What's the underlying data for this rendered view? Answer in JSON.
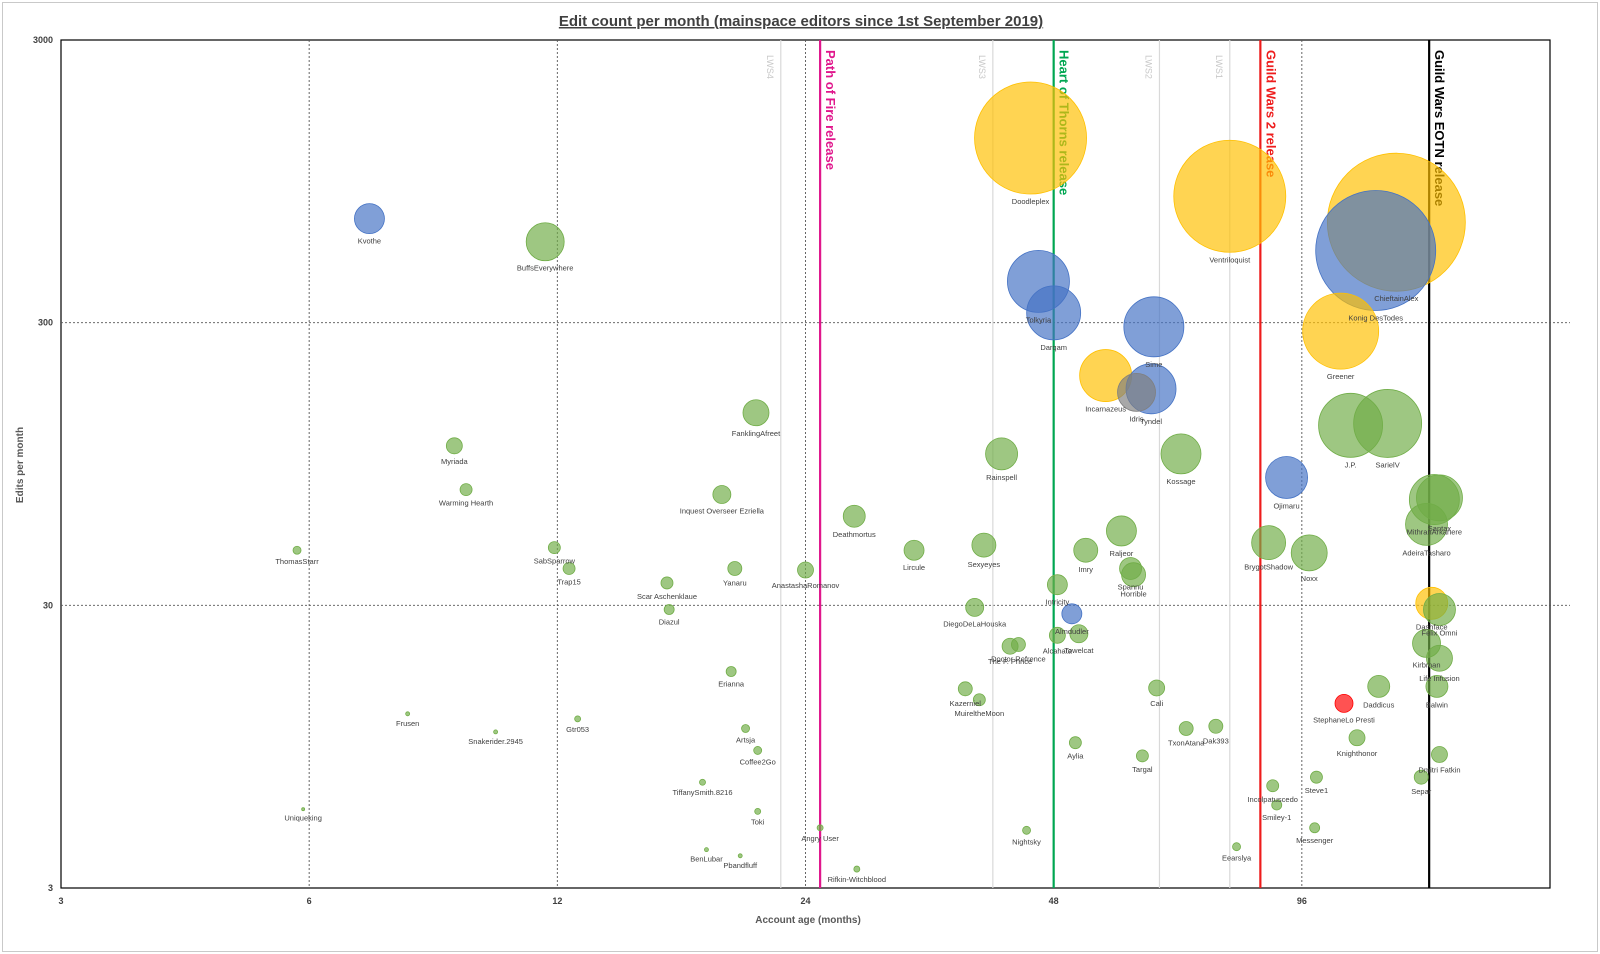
{
  "chart_data": {
    "type": "scatter",
    "title": "Edit count per month (mainspace editors  since 1st September 2019)",
    "xlabel": "Account age (months)",
    "ylabel": "Edits per month",
    "x_scale": "log",
    "y_scale": "log",
    "xlim": [
      3,
      192
    ],
    "ylim": [
      3,
      3000
    ],
    "x_ticks": [
      "3",
      "6",
      "12",
      "24",
      "48",
      "96"
    ],
    "y_ticks": [
      "3",
      "30",
      "300",
      "3000"
    ],
    "grid": true,
    "release_lines": [
      {
        "label": "Path of Fire release",
        "x": 25,
        "color": "#e0168c"
      },
      {
        "label": "Heart of Thorns release",
        "x": 48,
        "color": "#00a651"
      },
      {
        "label": "Guild Wars 2 release",
        "x": 85.5,
        "color": "#ee1c1c"
      },
      {
        "label": "Guild Wars EOTN release",
        "x": 137,
        "color": "#000000"
      }
    ],
    "lws_lines": [
      {
        "label": "LWS4",
        "x": 22.4
      },
      {
        "label": "LWS3",
        "x": 40.5
      },
      {
        "label": "LWS2",
        "x": 64.5
      },
      {
        "label": "LWS1",
        "x": 78.5
      }
    ],
    "colors": {
      "green": "#70ad47",
      "blue": "#4472c4",
      "orange": "#ffc000",
      "red": "#ff0000",
      "grey": "#7f7f7f"
    },
    "points": [
      {
        "name": "Kvothe",
        "x": 7.1,
        "y": 700,
        "r": 15,
        "c": "blue"
      },
      {
        "name": "BuffsEverywhere",
        "x": 11.6,
        "y": 580,
        "r": 19,
        "c": "green"
      },
      {
        "name": "Doodleplex",
        "x": 45,
        "y": 1350,
        "r": 56,
        "c": "orange"
      },
      {
        "name": "Tolkyria",
        "x": 46,
        "y": 420,
        "r": 31,
        "c": "blue"
      },
      {
        "name": "Darqam",
        "x": 48,
        "y": 325,
        "r": 27,
        "c": "blue"
      },
      {
        "name": "Incarnazeus",
        "x": 55.5,
        "y": 195,
        "r": 26,
        "c": "orange"
      },
      {
        "name": "Sime",
        "x": 63.5,
        "y": 290,
        "r": 30,
        "c": "blue"
      },
      {
        "name": "Idris",
        "x": 60.5,
        "y": 170,
        "r": 19,
        "c": "grey"
      },
      {
        "name": "Tyndel",
        "x": 63,
        "y": 175,
        "r": 25,
        "c": "blue"
      },
      {
        "name": "Ventriloquist",
        "x": 78.5,
        "y": 840,
        "r": 56,
        "c": "orange"
      },
      {
        "name": "ChieftainAlex",
        "x": 125,
        "y": 680,
        "r": 69,
        "c": "orange"
      },
      {
        "name": "Konig DesTodes",
        "x": 118,
        "y": 540,
        "r": 60,
        "c": "blue"
      },
      {
        "name": "Greener",
        "x": 107,
        "y": 280,
        "r": 38,
        "c": "orange"
      },
      {
        "name": "J.P.",
        "x": 110,
        "y": 130,
        "r": 32,
        "c": "green"
      },
      {
        "name": "SarielV",
        "x": 122,
        "y": 132,
        "r": 34,
        "c": "green"
      },
      {
        "name": "Santax",
        "x": 141,
        "y": 72,
        "r": 23,
        "c": "green"
      },
      {
        "name": "MithranArkanere",
        "x": 139,
        "y": 71,
        "r": 25,
        "c": "green"
      },
      {
        "name": "AdeiraTasharo",
        "x": 136,
        "y": 58,
        "r": 21,
        "c": "green"
      },
      {
        "name": "Dashface",
        "x": 138,
        "y": 30.5,
        "r": 16,
        "c": "orange"
      },
      {
        "name": "Felix Omni",
        "x": 141,
        "y": 29,
        "r": 16,
        "c": "green"
      },
      {
        "name": "Kirbman",
        "x": 136,
        "y": 22,
        "r": 14,
        "c": "green"
      },
      {
        "name": "Life Infusion",
        "x": 141,
        "y": 19.5,
        "r": 13,
        "c": "green"
      },
      {
        "name": "Balwin",
        "x": 140,
        "y": 15.5,
        "r": 11,
        "c": "green"
      },
      {
        "name": "Daddicus",
        "x": 119,
        "y": 15.5,
        "r": 11,
        "c": "green"
      },
      {
        "name": "StephaneLo Presti",
        "x": 108,
        "y": 13.5,
        "r": 9,
        "c": "red"
      },
      {
        "name": "Knighthonor",
        "x": 112,
        "y": 10.2,
        "r": 8,
        "c": "green"
      },
      {
        "name": "Dmitri Fatkin",
        "x": 141,
        "y": 8.9,
        "r": 8,
        "c": "green"
      },
      {
        "name": "Separ",
        "x": 134,
        "y": 7.4,
        "r": 7,
        "c": "green"
      },
      {
        "name": "Steve1",
        "x": 100,
        "y": 7.4,
        "r": 6,
        "c": "green"
      },
      {
        "name": "Messenger",
        "x": 99.5,
        "y": 4.9,
        "r": 5,
        "c": "green"
      },
      {
        "name": "Ojimaru",
        "x": 92,
        "y": 85,
        "r": 21,
        "c": "blue"
      },
      {
        "name": "Noxx",
        "x": 98,
        "y": 46,
        "r": 18,
        "c": "green"
      },
      {
        "name": "BrygotShadow",
        "x": 87.5,
        "y": 50,
        "r": 17,
        "c": "green"
      },
      {
        "name": "Incolpatuscedo",
        "x": 88.5,
        "y": 6.9,
        "r": 6,
        "c": "green"
      },
      {
        "name": "Smiley-1",
        "x": 89.5,
        "y": 5.9,
        "r": 5,
        "c": "green"
      },
      {
        "name": "Eearslya",
        "x": 80,
        "y": 4.2,
        "r": 4,
        "c": "green"
      },
      {
        "name": "Kossage",
        "x": 68.5,
        "y": 103,
        "r": 20,
        "c": "green"
      },
      {
        "name": "Raljeor",
        "x": 58,
        "y": 55,
        "r": 15,
        "c": "green"
      },
      {
        "name": "Spannu",
        "x": 59.5,
        "y": 40.5,
        "r": 11,
        "c": "green"
      },
      {
        "name": "Horrible",
        "x": 60,
        "y": 38.5,
        "r": 12,
        "c": "green"
      },
      {
        "name": "Cali",
        "x": 64,
        "y": 15.3,
        "r": 8,
        "c": "green"
      },
      {
        "name": "TxonAtana",
        "x": 69.5,
        "y": 11,
        "r": 7,
        "c": "green"
      },
      {
        "name": "Dak393",
        "x": 75.5,
        "y": 11.2,
        "r": 7,
        "c": "green"
      },
      {
        "name": "Targal",
        "x": 61.5,
        "y": 8.8,
        "r": 6,
        "c": "green"
      },
      {
        "name": "Aylia",
        "x": 51,
        "y": 9.8,
        "r": 6,
        "c": "green"
      },
      {
        "name": "Imry",
        "x": 52.5,
        "y": 47,
        "r": 12,
        "c": "green"
      },
      {
        "name": "Almdudler",
        "x": 50.5,
        "y": 28,
        "r": 10,
        "c": "blue"
      },
      {
        "name": "Intricity",
        "x": 48.5,
        "y": 35.5,
        "r": 10,
        "c": "green"
      },
      {
        "name": "Towelcat",
        "x": 51.5,
        "y": 23.8,
        "r": 9,
        "c": "green"
      },
      {
        "name": "Alcahata",
        "x": 48.5,
        "y": 23.5,
        "r": 8,
        "c": "green"
      },
      {
        "name": "Rainspell",
        "x": 41.5,
        "y": 103,
        "r": 16,
        "c": "green"
      },
      {
        "name": "Sexyeyes",
        "x": 39.5,
        "y": 49,
        "r": 12,
        "c": "green"
      },
      {
        "name": "Lircule",
        "x": 32.5,
        "y": 47,
        "r": 10,
        "c": "green"
      },
      {
        "name": "DiegoDeLaHouska",
        "x": 38.5,
        "y": 29.5,
        "r": 9,
        "c": "green"
      },
      {
        "name": "The F. Prince",
        "x": 42.5,
        "y": 21.5,
        "r": 8,
        "c": "green"
      },
      {
        "name": "Doctor Refrence",
        "x": 43.5,
        "y": 21.8,
        "r": 7,
        "c": "green"
      },
      {
        "name": "Kazerniel",
        "x": 37.5,
        "y": 15.2,
        "r": 7,
        "c": "green"
      },
      {
        "name": "MuireltheMoon",
        "x": 39,
        "y": 13.9,
        "r": 6,
        "c": "green"
      },
      {
        "name": "Nightsky",
        "x": 44.5,
        "y": 4.8,
        "r": 4,
        "c": "green"
      },
      {
        "name": "Deathmortus",
        "x": 27.5,
        "y": 62,
        "r": 11,
        "c": "green"
      },
      {
        "name": "AnastashaRomanov",
        "x": 24,
        "y": 40,
        "r": 8,
        "c": "green"
      },
      {
        "name": "Angry User",
        "x": 25,
        "y": 4.9,
        "r": 3,
        "c": "green"
      },
      {
        "name": "Rifkin-Witchblood",
        "x": 27.7,
        "y": 3.5,
        "r": 3,
        "c": "green"
      },
      {
        "name": "FanklingAfreet",
        "x": 20.9,
        "y": 144,
        "r": 13,
        "c": "green"
      },
      {
        "name": "Inquest Overseer Ezriella",
        "x": 19,
        "y": 74,
        "r": 9,
        "c": "green"
      },
      {
        "name": "Yanaru",
        "x": 19.7,
        "y": 40.5,
        "r": 7,
        "c": "green"
      },
      {
        "name": "Scar Aschenklaue",
        "x": 16.3,
        "y": 36,
        "r": 6,
        "c": "green"
      },
      {
        "name": "Diazul",
        "x": 16.4,
        "y": 29,
        "r": 5,
        "c": "green"
      },
      {
        "name": "Erianna",
        "x": 19.5,
        "y": 17.5,
        "r": 5,
        "c": "green"
      },
      {
        "name": "Artsja",
        "x": 20.3,
        "y": 11,
        "r": 4,
        "c": "green"
      },
      {
        "name": "Coffee2Go",
        "x": 21,
        "y": 9.2,
        "r": 4,
        "c": "green"
      },
      {
        "name": "TiffanySmith.8216",
        "x": 18,
        "y": 7.1,
        "r": 3,
        "c": "green"
      },
      {
        "name": "Toki",
        "x": 21,
        "y": 5.6,
        "r": 3,
        "c": "green"
      },
      {
        "name": "BenLubar",
        "x": 18.2,
        "y": 4.1,
        "r": 2,
        "c": "green"
      },
      {
        "name": "Pbandfluff",
        "x": 20,
        "y": 3.9,
        "r": 2,
        "c": "green"
      },
      {
        "name": "SabSparrow",
        "x": 11.9,
        "y": 48,
        "r": 6,
        "c": "green"
      },
      {
        "name": "Trap15",
        "x": 12.4,
        "y": 40.5,
        "r": 6,
        "c": "green"
      },
      {
        "name": "Gtr053",
        "x": 12.7,
        "y": 11.9,
        "r": 3,
        "c": "green"
      },
      {
        "name": "Myriada",
        "x": 9,
        "y": 110,
        "r": 8,
        "c": "green"
      },
      {
        "name": "Warming Hearth",
        "x": 9.3,
        "y": 77,
        "r": 6,
        "c": "green"
      },
      {
        "name": "Frusen",
        "x": 7.9,
        "y": 12.4,
        "r": 2,
        "c": "green"
      },
      {
        "name": "Snakerider.2945",
        "x": 10.1,
        "y": 10.7,
        "r": 2,
        "c": "green"
      },
      {
        "name": "ThomasStarr",
        "x": 5.8,
        "y": 47,
        "r": 4,
        "c": "green"
      },
      {
        "name": "Uniqueking",
        "x": 5.9,
        "y": 5.7,
        "r": 1.5,
        "c": "green"
      }
    ]
  }
}
